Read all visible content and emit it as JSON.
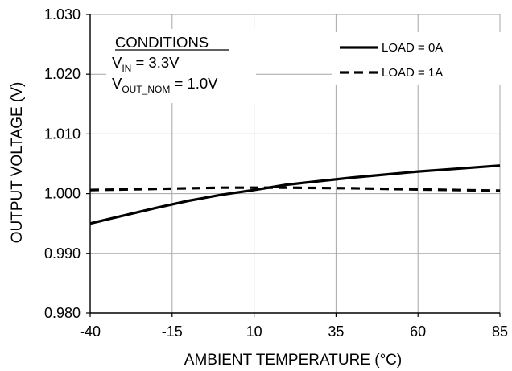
{
  "chart_data": {
    "type": "line",
    "xlabel": "AMBIENT TEMPERATURE (°C)",
    "ylabel": "OUTPUT  VOLTAGE (V)",
    "xlim": [
      -40,
      85
    ],
    "ylim": [
      0.98,
      1.03
    ],
    "x_ticks": [
      -40,
      -15,
      10,
      35,
      60,
      85
    ],
    "x_tick_labels": [
      "-40",
      "-15",
      "10",
      "35",
      "60",
      "85"
    ],
    "y_ticks": [
      0.98,
      0.99,
      1.0,
      1.01,
      1.02,
      1.03
    ],
    "y_tick_labels": [
      "0.980",
      "0.990",
      "1.000",
      "1.010",
      "1.020",
      "1.030"
    ],
    "grid": true,
    "legend_position": "top-right",
    "annotation": {
      "heading": "CONDITIONS",
      "line1": {
        "var": "V",
        "sub": "IN",
        "rest": " = 3.3V"
      },
      "line2": {
        "var": "V",
        "sub": "OUT_NOM",
        "rest": " = 1.0V"
      }
    },
    "series": [
      {
        "name": "LOAD = 0A",
        "style": "solid",
        "color": "#000000",
        "x": [
          -40,
          -30,
          -20,
          -10,
          0,
          10,
          20,
          30,
          40,
          50,
          60,
          70,
          85
        ],
        "y": [
          0.995,
          0.9963,
          0.9976,
          0.9988,
          0.9998,
          1.0006,
          1.0015,
          1.0021,
          1.0027,
          1.0032,
          1.0037,
          1.0041,
          1.0047
        ]
      },
      {
        "name": "LOAD = 1A",
        "style": "dashed",
        "color": "#000000",
        "x": [
          -40,
          -20,
          0,
          20,
          40,
          60,
          85
        ],
        "y": [
          1.0006,
          1.0008,
          1.001,
          1.001,
          1.0009,
          1.0007,
          1.0005
        ]
      }
    ]
  }
}
